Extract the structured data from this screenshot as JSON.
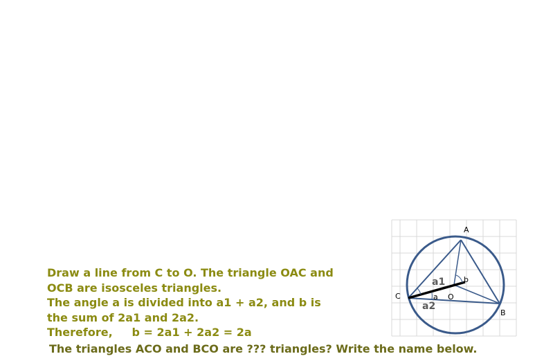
{
  "explanation": {
    "lines": [
      "Draw a line from C to O. The triangle OAC and",
      "OCB are isosceles triangles.",
      "The angle a is divided into a1 + a2, and b is",
      "the sum of 2a1 and 2a2.",
      "Therefore,     b = 2a1 + 2a2 = 2a"
    ]
  },
  "question": "The triangles ACO and BCO are ??? triangles? Write the name below.",
  "diagram": {
    "point_labels": {
      "A": "A",
      "B": "B",
      "C": "C",
      "O": "O"
    },
    "angle_labels": {
      "a1": "a1",
      "a2": "a2",
      "a": "a",
      "b": "b"
    }
  },
  "colors": {
    "text": "#8b8b12",
    "question_text": "#6b6b1a",
    "circle": "#3a5a8a",
    "grid": "#d9d9d9",
    "segment_co": "#000000"
  }
}
